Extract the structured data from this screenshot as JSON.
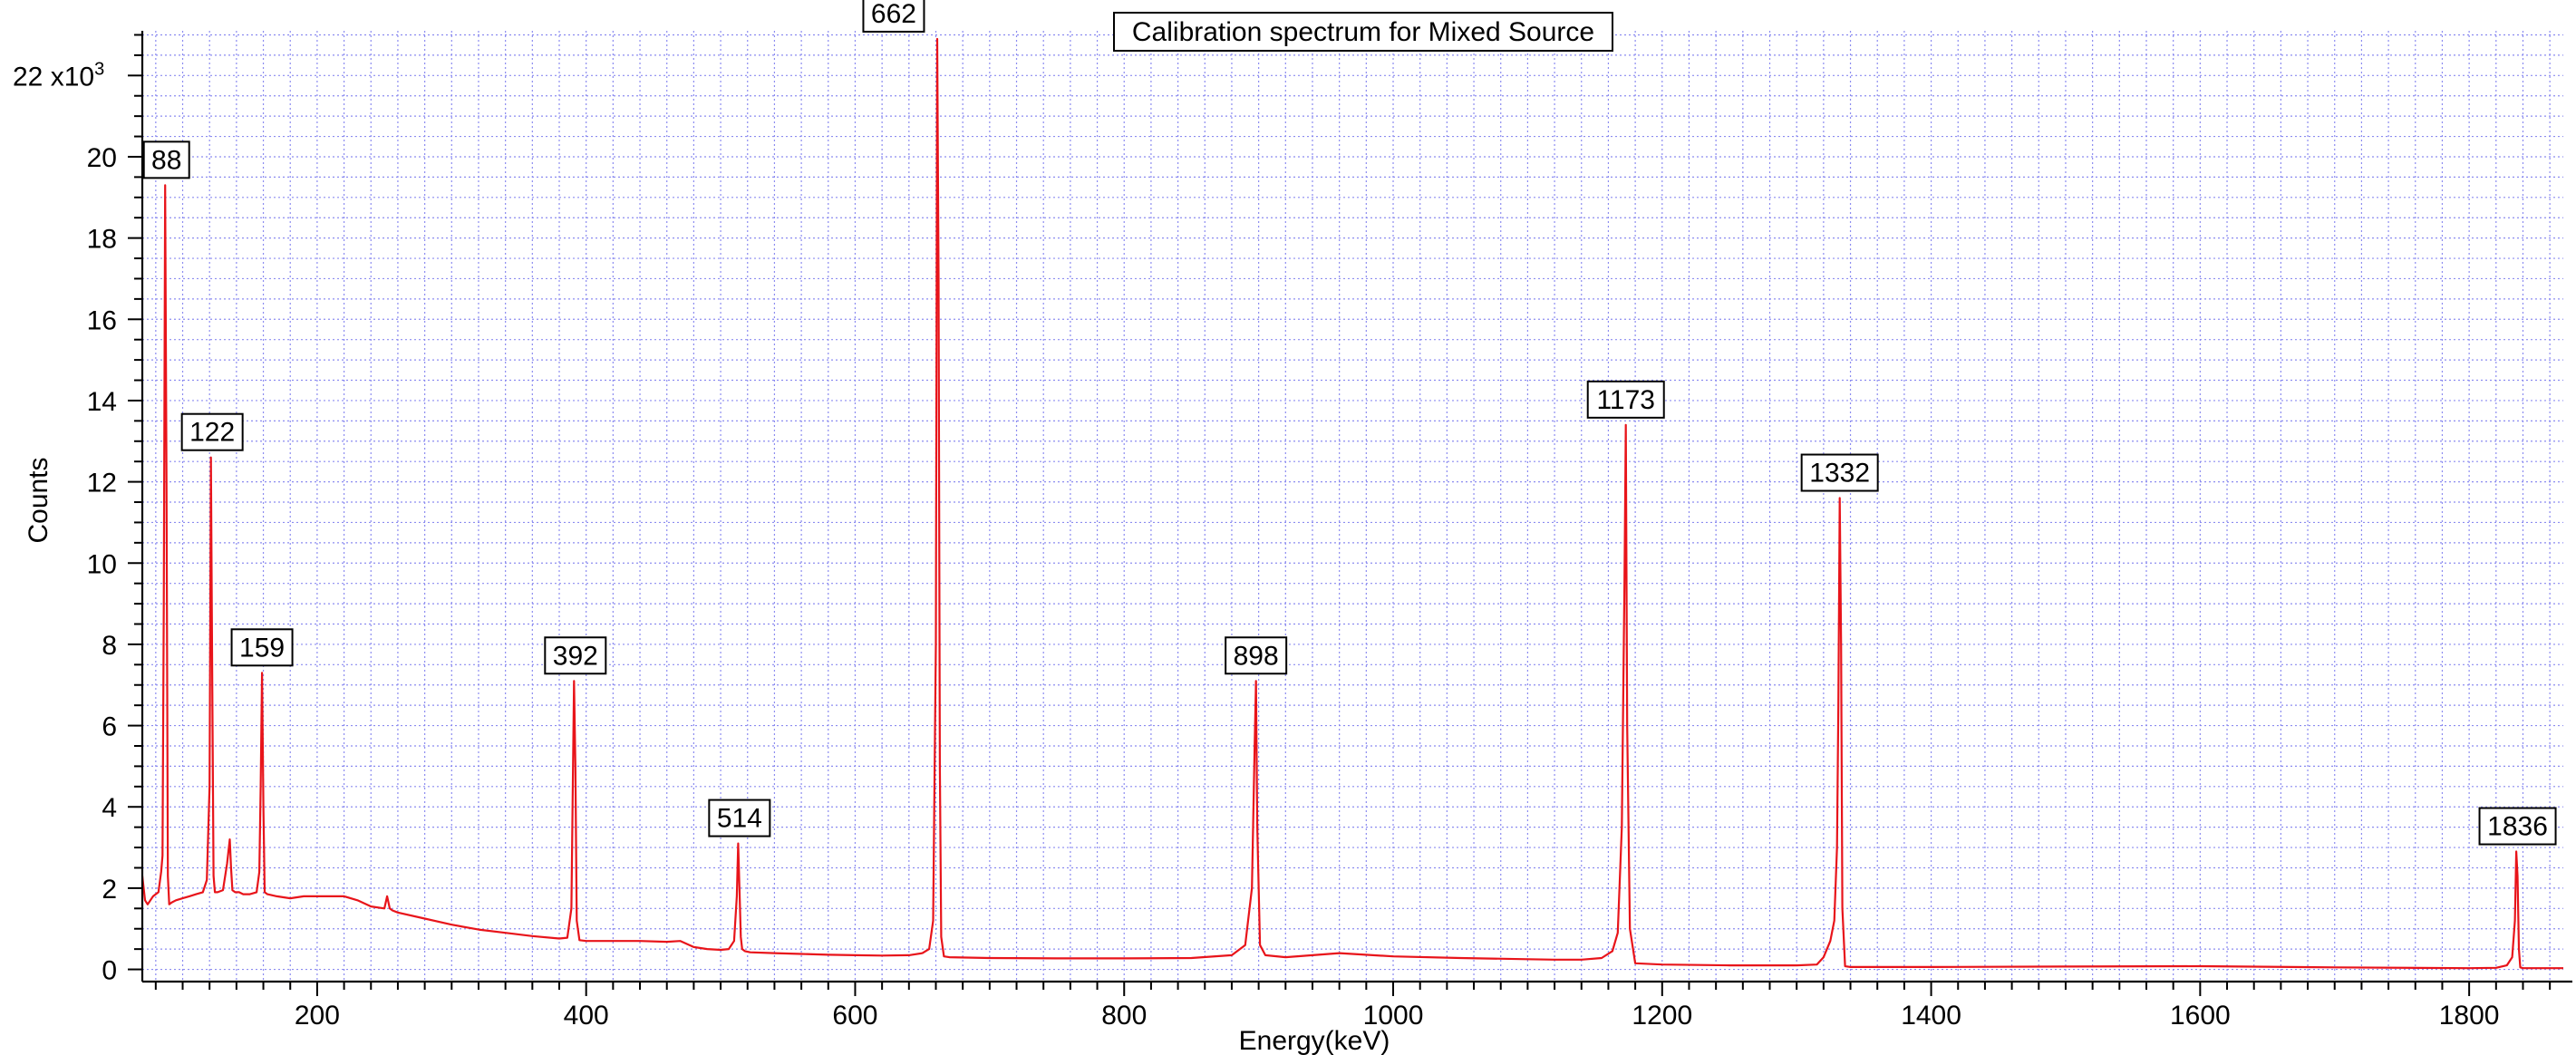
{
  "chart_data": {
    "type": "line",
    "title": "Calibration spectrum for Mixed Source",
    "xlabel": "Energy(keV)",
    "ylabel": "Counts",
    "y_multiplier_label": "x10",
    "y_multiplier_exp": "3",
    "xlim": [
      70,
      1870
    ],
    "ylim": [
      -0.3,
      23.1
    ],
    "x_ticks": [
      200,
      400,
      600,
      800,
      1000,
      1200,
      1400,
      1600,
      1800
    ],
    "y_ticks": [
      0,
      2,
      4,
      6,
      8,
      10,
      12,
      14,
      16,
      18,
      20,
      22
    ],
    "y_tick_labels": [
      "0",
      "2",
      "4",
      "6",
      "8",
      "10",
      "12",
      "14",
      "16",
      "18",
      "20",
      "22"
    ],
    "grid": true,
    "line_color": "#e8141a",
    "grid_color": "#8c8cf0",
    "series": [
      {
        "x": [
          70,
          72,
          74,
          76,
          78,
          80,
          82,
          84,
          85,
          86,
          87,
          88,
          89,
          90,
          92,
          95,
          100,
          105,
          110,
          115,
          118,
          120,
          121,
          122,
          123,
          124,
          126,
          130,
          133,
          135,
          136,
          137,
          139,
          142,
          145,
          150,
          155,
          157,
          158,
          159,
          160,
          161,
          163,
          170,
          180,
          190,
          200,
          210,
          220,
          230,
          240,
          250,
          252,
          254,
          256,
          260,
          280,
          300,
          320,
          340,
          360,
          380,
          386,
          389,
          391,
          392,
          393,
          395,
          400,
          420,
          440,
          460,
          470,
          480,
          490,
          500,
          506,
          510,
          512,
          513,
          514,
          515,
          516,
          518,
          522,
          540,
          560,
          580,
          600,
          620,
          640,
          650,
          655,
          658,
          660,
          661,
          662,
          663,
          664,
          666,
          670,
          700,
          750,
          800,
          850,
          880,
          890,
          895,
          897,
          898,
          899,
          901,
          905,
          920,
          940,
          960,
          1000,
          1050,
          1100,
          1120,
          1140,
          1155,
          1163,
          1167,
          1170,
          1172,
          1173,
          1174,
          1176,
          1180,
          1200,
          1250,
          1300,
          1315,
          1320,
          1325,
          1328,
          1330,
          1331,
          1332,
          1333,
          1334,
          1336,
          1340,
          1400,
          1500,
          1600,
          1700,
          1800,
          1820,
          1828,
          1832,
          1834,
          1835,
          1836,
          1837,
          1838,
          1840,
          1860,
          1870
        ],
        "y": [
          2.3,
          1.7,
          1.6,
          1.7,
          1.8,
          1.85,
          1.9,
          2.4,
          2.8,
          9.0,
          19.3,
          12.0,
          2.3,
          1.6,
          1.65,
          1.7,
          1.75,
          1.8,
          1.85,
          1.9,
          2.2,
          4.5,
          12.6,
          7.0,
          2.3,
          1.9,
          1.9,
          1.95,
          2.6,
          3.2,
          2.5,
          1.95,
          1.9,
          1.9,
          1.85,
          1.85,
          1.9,
          2.4,
          4.5,
          7.3,
          4.0,
          1.9,
          1.85,
          1.8,
          1.75,
          1.8,
          1.8,
          1.8,
          1.8,
          1.7,
          1.55,
          1.5,
          1.8,
          1.5,
          1.45,
          1.4,
          1.25,
          1.1,
          0.98,
          0.9,
          0.82,
          0.76,
          0.78,
          1.5,
          7.1,
          5.0,
          1.2,
          0.72,
          0.7,
          0.7,
          0.7,
          0.68,
          0.7,
          0.55,
          0.5,
          0.48,
          0.5,
          0.7,
          1.8,
          3.1,
          2.0,
          0.8,
          0.5,
          0.45,
          0.42,
          0.4,
          0.38,
          0.36,
          0.35,
          0.34,
          0.35,
          0.4,
          0.5,
          1.2,
          8.0,
          22.9,
          17.0,
          5.0,
          0.8,
          0.32,
          0.3,
          0.28,
          0.27,
          0.27,
          0.28,
          0.35,
          0.6,
          2.0,
          5.5,
          7.1,
          3.5,
          0.6,
          0.35,
          0.3,
          0.35,
          0.4,
          0.32,
          0.28,
          0.25,
          0.24,
          0.24,
          0.28,
          0.45,
          0.9,
          3.5,
          9.5,
          13.4,
          6.0,
          1.0,
          0.15,
          0.12,
          0.1,
          0.1,
          0.12,
          0.3,
          0.7,
          1.2,
          3.0,
          6.5,
          11.6,
          8.0,
          1.5,
          0.08,
          0.06,
          0.06,
          0.07,
          0.08,
          0.05,
          0.03,
          0.04,
          0.1,
          0.3,
          1.2,
          2.9,
          2.3,
          0.5,
          0.05,
          0.03,
          0.03,
          0.03
        ]
      }
    ],
    "peak_labels": [
      {
        "text": "88",
        "x": 88,
        "y": 19.3
      },
      {
        "text": "122",
        "x": 122,
        "y": 12.6
      },
      {
        "text": "159",
        "x": 159,
        "y": 7.3
      },
      {
        "text": "392",
        "x": 392,
        "y": 7.1
      },
      {
        "text": "514",
        "x": 514,
        "y": 3.1
      },
      {
        "text": "662",
        "x": 662,
        "y": 22.9
      },
      {
        "text": "898",
        "x": 898,
        "y": 7.1
      },
      {
        "text": "1173",
        "x": 1173,
        "y": 13.4
      },
      {
        "text": "1332",
        "x": 1332,
        "y": 11.6
      },
      {
        "text": "1836",
        "x": 1836,
        "y": 2.9
      }
    ]
  }
}
